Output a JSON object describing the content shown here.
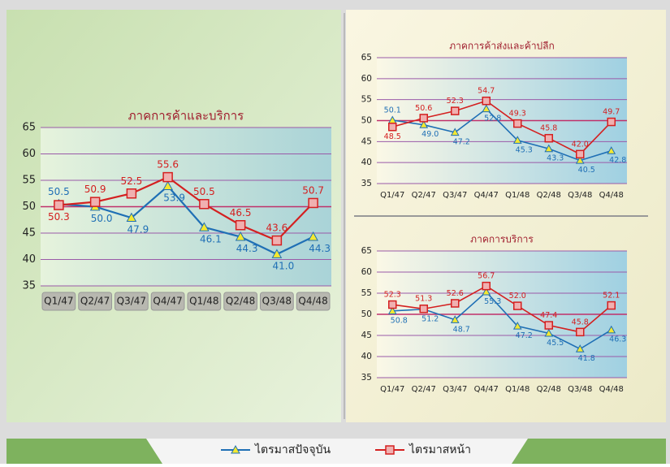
{
  "chart_data": [
    {
      "type": "line",
      "title": "ภาคการค้าและบริการ",
      "categories": [
        "Q1/47",
        "Q2/47",
        "Q3/47",
        "Q4/47",
        "Q1/48",
        "Q2/48",
        "Q3/48",
        "Q4/48"
      ],
      "series": [
        {
          "name": "ไตรมาสปัจจุบัน",
          "color": "#1f6fb5",
          "marker": "triangle",
          "values": [
            50.5,
            50.0,
            47.9,
            53.9,
            46.1,
            44.3,
            41.0,
            44.3
          ],
          "value_labels": [
            "50.5",
            "50.0",
            "47.9",
            "53.9",
            "46.1",
            "44.3",
            "41.0",
            "44.3"
          ]
        },
        {
          "name": "ไตรมาสหน้า",
          "color": "#d42020",
          "marker": "square",
          "values": [
            50.3,
            50.9,
            52.5,
            55.6,
            50.5,
            46.5,
            43.6,
            50.7
          ],
          "value_labels": [
            "50.3",
            "50.9",
            "52.5",
            "55.6",
            "50.5",
            "46.5",
            "43.6",
            "50.7"
          ]
        }
      ],
      "ylim": [
        35,
        65
      ],
      "yticks": [
        35,
        40,
        45,
        50,
        55,
        60,
        65
      ],
      "grid": true
    },
    {
      "type": "line",
      "title": "ภาคการค้าส่งและค้าปลีก",
      "categories": [
        "Q1/47",
        "Q2/47",
        "Q3/47",
        "Q4/47",
        "Q1/48",
        "Q2/48",
        "Q3/48",
        "Q4/48"
      ],
      "series": [
        {
          "color": "#1f6fb5",
          "marker": "triangle",
          "values": [
            50.1,
            49.0,
            47.2,
            52.8,
            45.3,
            43.3,
            40.5,
            42.8
          ],
          "value_labels": [
            "50.1",
            "49.0",
            "47.2",
            "52.8",
            "45.3",
            "43.3",
            "40.5",
            "42.8"
          ]
        },
        {
          "color": "#d42020",
          "marker": "square",
          "values": [
            48.5,
            50.6,
            52.3,
            54.7,
            49.3,
            45.8,
            42.0,
            49.7
          ],
          "value_labels": [
            "48.5",
            "50.6",
            "52.3",
            "54.7",
            "49.3",
            "45.8",
            "42.0",
            "49.7"
          ]
        }
      ],
      "ylim": [
        35,
        65
      ],
      "yticks": [
        35,
        40,
        45,
        50,
        55,
        60,
        65
      ],
      "grid": true
    },
    {
      "type": "line",
      "title": "ภาคการบริการ",
      "categories": [
        "Q1/47",
        "Q2/47",
        "Q3/47",
        "Q4/47",
        "Q1/48",
        "Q2/48",
        "Q3/48",
        "Q4/48"
      ],
      "series": [
        {
          "color": "#1f6fb5",
          "marker": "triangle",
          "values": [
            50.8,
            51.2,
            48.7,
            55.3,
            47.2,
            45.5,
            41.8,
            46.3
          ],
          "value_labels": [
            "50.8",
            "51.2",
            "48.7",
            "55.3",
            "47.2",
            "45.5",
            "41.8",
            "46.3"
          ]
        },
        {
          "color": "#d42020",
          "marker": "square",
          "values": [
            52.3,
            51.3,
            52.6,
            56.7,
            52.0,
            47.4,
            45.8,
            52.1
          ],
          "value_labels": [
            "52.3",
            "51.3",
            "52.6",
            "56.7",
            "52.0",
            "47.4",
            "45.8",
            "52.1"
          ]
        }
      ],
      "ylim": [
        35,
        65
      ],
      "yticks": [
        35,
        40,
        45,
        50,
        55,
        60,
        65
      ],
      "grid": true
    }
  ]
}
